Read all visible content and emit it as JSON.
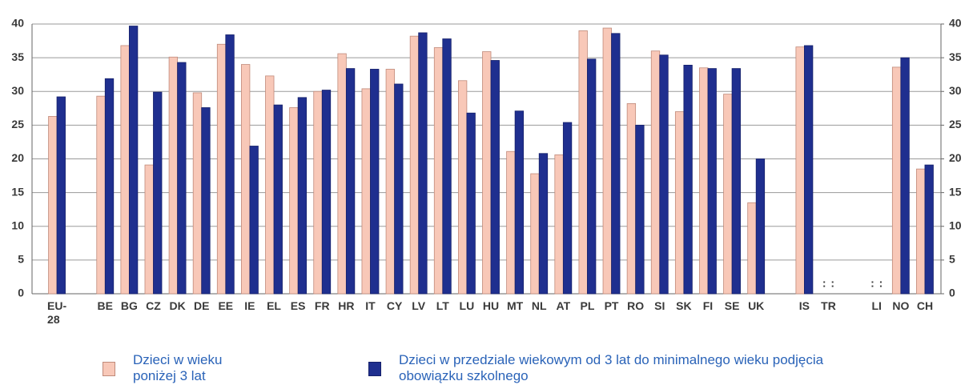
{
  "chart_data": {
    "type": "bar",
    "categories": [
      "EU-28",
      null,
      "BE",
      "BG",
      "CZ",
      "DK",
      "DE",
      "EE",
      "IE",
      "EL",
      "ES",
      "FR",
      "HR",
      "IT",
      "CY",
      "LV",
      "LT",
      "LU",
      "HU",
      "MT",
      "NL",
      "AT",
      "PL",
      "PT",
      "RO",
      "SI",
      "SK",
      "FI",
      "SE",
      "UK",
      null,
      "IS",
      "TR",
      null,
      "LI",
      "NO",
      "CH"
    ],
    "series": [
      {
        "name": "Dzieci w wieku poniżej 3 lat",
        "color": "#f8c8b8",
        "values": [
          26.3,
          null,
          29.3,
          36.8,
          19.1,
          35.1,
          29.8,
          37.0,
          34.0,
          32.3,
          27.6,
          30.0,
          35.6,
          30.4,
          33.3,
          38.2,
          36.5,
          31.6,
          35.9,
          21.1,
          17.8,
          20.6,
          39.0,
          39.4,
          28.2,
          36.0,
          27.0,
          33.5,
          29.6,
          13.5,
          null,
          36.6,
          null,
          null,
          null,
          33.6,
          18.5
        ],
        "value_labels": [
          null,
          null,
          null,
          null,
          null,
          null,
          null,
          null,
          null,
          null,
          null,
          null,
          null,
          null,
          null,
          null,
          null,
          null,
          null,
          null,
          null,
          null,
          null,
          null,
          null,
          null,
          null,
          null,
          null,
          null,
          null,
          null,
          ":",
          null,
          ":",
          null,
          null
        ]
      },
      {
        "name": "Dzieci w przedziale wiekowym od 3 lat do minimalnego wieku podjęcia obowiązku szkolnego",
        "color": "#1f2f8f",
        "values": [
          29.2,
          null,
          31.9,
          39.7,
          29.9,
          34.3,
          27.6,
          38.4,
          21.9,
          28.0,
          29.1,
          30.2,
          33.4,
          33.3,
          31.1,
          38.7,
          37.8,
          26.8,
          34.6,
          27.1,
          20.8,
          25.4,
          34.8,
          38.6,
          25.0,
          35.4,
          33.9,
          33.4,
          33.4,
          20.0,
          null,
          36.8,
          null,
          null,
          null,
          35.0,
          19.1
        ],
        "value_labels": [
          null,
          null,
          null,
          null,
          null,
          null,
          null,
          null,
          null,
          null,
          null,
          null,
          null,
          null,
          null,
          null,
          null,
          null,
          null,
          null,
          null,
          null,
          null,
          null,
          null,
          null,
          null,
          null,
          null,
          null,
          null,
          null,
          ":",
          null,
          ":",
          null,
          null
        ]
      }
    ],
    "ylim": [
      0,
      40
    ],
    "yticks": [
      0,
      5,
      10,
      15,
      20,
      25,
      30,
      35,
      40
    ],
    "y2lim": [
      0,
      40
    ],
    "y2ticks": [
      0,
      5,
      10,
      15,
      20,
      25,
      30,
      35,
      40
    ],
    "grid": true
  }
}
